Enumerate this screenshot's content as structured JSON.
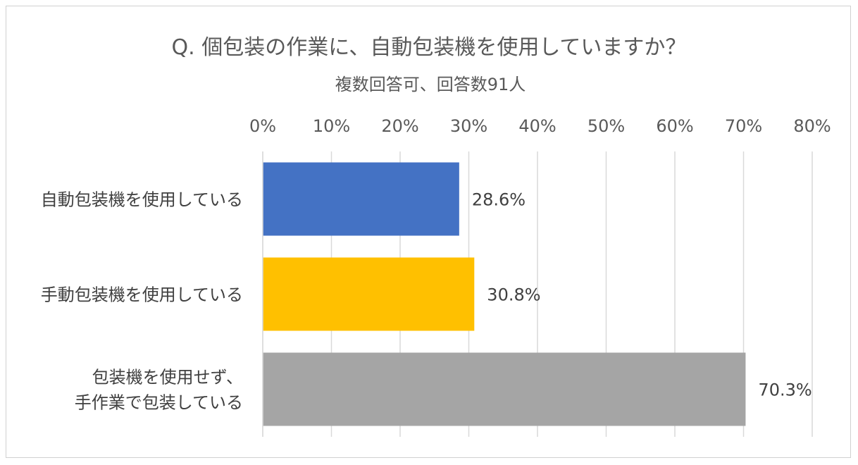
{
  "chart_data": {
    "type": "bar",
    "orientation": "horizontal",
    "title": "Q.  個包装の作業に、自動包装機を使用していますか？",
    "subtitle": "複数回答可、回答数91人",
    "xlim": [
      0,
      80
    ],
    "xticks": [
      "0%",
      "10%",
      "20%",
      "30%",
      "40%",
      "50%",
      "60%",
      "70%",
      "80%"
    ],
    "xtick_values": [
      0,
      10,
      20,
      30,
      40,
      50,
      60,
      70,
      80
    ],
    "grid": true,
    "categories": [
      [
        "自動包装機を使用している"
      ],
      [
        "手動包装機を使用している"
      ],
      [
        "包装機を使用せず、",
        "手作業で包装している"
      ]
    ],
    "values": [
      28.6,
      30.8,
      70.3
    ],
    "value_labels": [
      "28.6%",
      "30.8%",
      "70.3%"
    ],
    "colors": [
      "#4472C4",
      "#FFC000",
      "#A5A5A5"
    ]
  }
}
